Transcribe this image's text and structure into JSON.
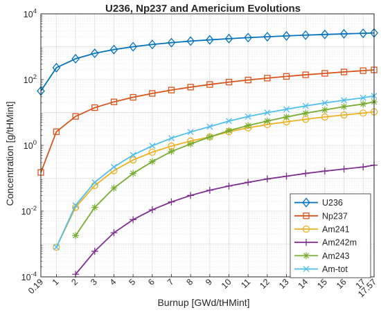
{
  "chart_data": {
    "type": "line",
    "title": "U236, Np237 and Americium Evolutions",
    "xlabel": "Burnup [GWd/tHMint]",
    "ylabel": "Concentration [g/tHMint]",
    "y_scale": "log",
    "ylim": [
      0.0001,
      10000
    ],
    "xlim": [
      0.19,
      17.57
    ],
    "grid": true,
    "legend_position": "bottom-right",
    "x_ticks": [
      "0.19",
      "1",
      "2",
      "3",
      "4",
      "5",
      "6",
      "7",
      "8",
      "9",
      "10",
      "11",
      "12",
      "13",
      "14",
      "15",
      "16",
      "17",
      "17.57"
    ],
    "y_ticks": [
      {
        "value": 0.0001,
        "base": "10",
        "exp": "-4"
      },
      {
        "value": 0.01,
        "base": "10",
        "exp": "-2"
      },
      {
        "value": 1,
        "base": "10",
        "exp": "0"
      },
      {
        "value": 100,
        "base": "10",
        "exp": "2"
      },
      {
        "value": 10000,
        "base": "10",
        "exp": "4"
      }
    ],
    "x": [
      0.19,
      1,
      2,
      3,
      4,
      5,
      6,
      7,
      8,
      9,
      10,
      11,
      12,
      13,
      14,
      15,
      16,
      17,
      17.57
    ],
    "series": [
      {
        "name": "U236",
        "color": "#0072BD",
        "marker": "diamond",
        "values": [
          45,
          230,
          430,
          630,
          820,
          1000,
          1170,
          1330,
          1480,
          1620,
          1760,
          1890,
          2010,
          2130,
          2250,
          2360,
          2460,
          2560,
          2620
        ]
      },
      {
        "name": "Np237",
        "color": "#D95319",
        "marker": "square",
        "values": [
          0.15,
          2.6,
          7.6,
          14,
          21,
          29,
          38,
          48,
          59,
          71,
          84,
          97,
          111,
          125,
          140,
          155,
          171,
          187,
          197
        ]
      },
      {
        "name": "Am241",
        "color": "#EDB120",
        "marker": "circle",
        "values": [
          null,
          0.0008,
          0.013,
          0.06,
          0.17,
          0.36,
          0.62,
          0.95,
          1.35,
          1.8,
          2.6,
          3.4,
          4.3,
          5.2,
          6.2,
          7.3,
          8.4,
          9.6,
          10.5
        ]
      },
      {
        "name": "Am242m",
        "color": "#7E2F8E",
        "marker": "plus",
        "values": [
          null,
          null,
          0.00012,
          0.0006,
          0.0022,
          0.0055,
          0.011,
          0.019,
          0.03,
          0.043,
          0.058,
          0.075,
          0.095,
          0.115,
          0.14,
          0.165,
          0.19,
          0.22,
          0.25
        ]
      },
      {
        "name": "Am243",
        "color": "#77AC30",
        "marker": "asterisk",
        "values": [
          null,
          null,
          0.0018,
          0.013,
          0.05,
          0.14,
          0.32,
          0.65,
          1.1,
          1.8,
          2.8,
          4.0,
          5.5,
          7.3,
          9.5,
          12,
          15,
          18,
          21
        ]
      },
      {
        "name": "Am-tot",
        "color": "#4DBEEE",
        "marker": "x",
        "values": [
          null,
          0.0008,
          0.015,
          0.075,
          0.22,
          0.51,
          0.97,
          1.65,
          2.55,
          3.7,
          5.5,
          7.5,
          9.9,
          12.5,
          15.8,
          19.5,
          23.5,
          28,
          32
        ]
      }
    ]
  }
}
